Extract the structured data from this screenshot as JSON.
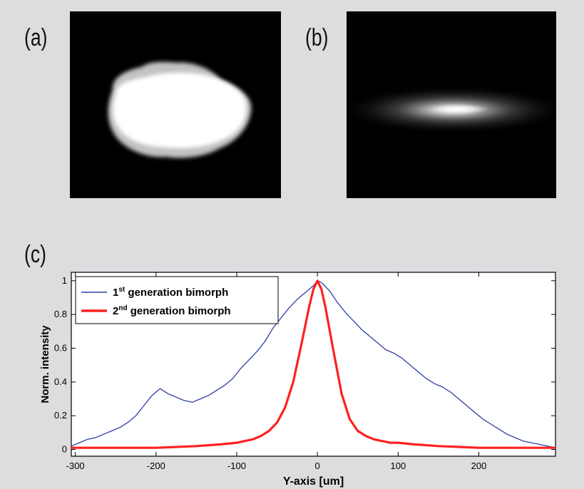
{
  "panels": {
    "a_label": "(a)",
    "b_label": "(b)",
    "c_label": "(c)"
  },
  "colors": {
    "page_background": "#dcdddf",
    "image_background": "#000000",
    "series1": "#2f3fa6",
    "series2": "#ff2020"
  },
  "chart_data": {
    "type": "line",
    "title": "",
    "xlabel": "Y-axis [um]",
    "ylabel": "Norm. intensity",
    "xlim": [
      -305,
      295
    ],
    "ylim": [
      -0.04,
      1.05
    ],
    "xticks": [
      -300,
      -200,
      -100,
      0,
      100,
      200
    ],
    "yticks": [
      0,
      0.2,
      0.4,
      0.6,
      0.8,
      1
    ],
    "xtick_labels": [
      "-300",
      "-200",
      "-100",
      "0",
      "100",
      "200"
    ],
    "ytick_labels": [
      "0",
      "0.2",
      "0.4",
      "0.6",
      "0.8",
      "1"
    ],
    "grid": false,
    "legend_position": "top-left",
    "series": [
      {
        "name_prefix": "1",
        "name_sup": "st",
        "name_suffix": " generation bimorph",
        "color": "#2f3fa6",
        "x": [
          -305,
          -295,
          -285,
          -275,
          -265,
          -255,
          -245,
          -235,
          -225,
          -215,
          -205,
          -195,
          -185,
          -175,
          -165,
          -155,
          -145,
          -135,
          -125,
          -115,
          -105,
          -95,
          -85,
          -75,
          -65,
          -55,
          -45,
          -35,
          -25,
          -15,
          -5,
          0,
          5,
          15,
          25,
          35,
          45,
          55,
          65,
          75,
          85,
          95,
          105,
          115,
          125,
          135,
          145,
          155,
          165,
          175,
          185,
          195,
          205,
          215,
          225,
          235,
          245,
          255,
          265,
          275,
          285,
          295
        ],
        "y": [
          0.02,
          0.04,
          0.06,
          0.07,
          0.09,
          0.11,
          0.13,
          0.16,
          0.2,
          0.26,
          0.32,
          0.36,
          0.33,
          0.31,
          0.29,
          0.28,
          0.3,
          0.32,
          0.35,
          0.38,
          0.42,
          0.48,
          0.53,
          0.58,
          0.64,
          0.72,
          0.78,
          0.84,
          0.89,
          0.93,
          0.97,
          1.0,
          0.99,
          0.94,
          0.87,
          0.81,
          0.76,
          0.71,
          0.67,
          0.63,
          0.59,
          0.57,
          0.54,
          0.5,
          0.46,
          0.42,
          0.39,
          0.37,
          0.34,
          0.3,
          0.26,
          0.22,
          0.18,
          0.15,
          0.12,
          0.09,
          0.07,
          0.05,
          0.04,
          0.03,
          0.02,
          0.01
        ]
      },
      {
        "name_prefix": "2",
        "name_sup": "nd",
        "name_suffix": " generation bimorph",
        "color": "#ff2020",
        "x": [
          -305,
          -250,
          -200,
          -150,
          -120,
          -100,
          -90,
          -80,
          -70,
          -60,
          -50,
          -40,
          -30,
          -20,
          -10,
          -5,
          0,
          5,
          10,
          20,
          30,
          40,
          50,
          60,
          70,
          80,
          90,
          100,
          120,
          150,
          200,
          250,
          295
        ],
        "y": [
          0.01,
          0.01,
          0.01,
          0.02,
          0.03,
          0.04,
          0.05,
          0.06,
          0.08,
          0.11,
          0.16,
          0.25,
          0.4,
          0.62,
          0.85,
          0.95,
          1.0,
          0.95,
          0.84,
          0.58,
          0.33,
          0.18,
          0.11,
          0.08,
          0.06,
          0.05,
          0.04,
          0.04,
          0.03,
          0.02,
          0.01,
          0.01,
          0.01
        ]
      }
    ]
  }
}
